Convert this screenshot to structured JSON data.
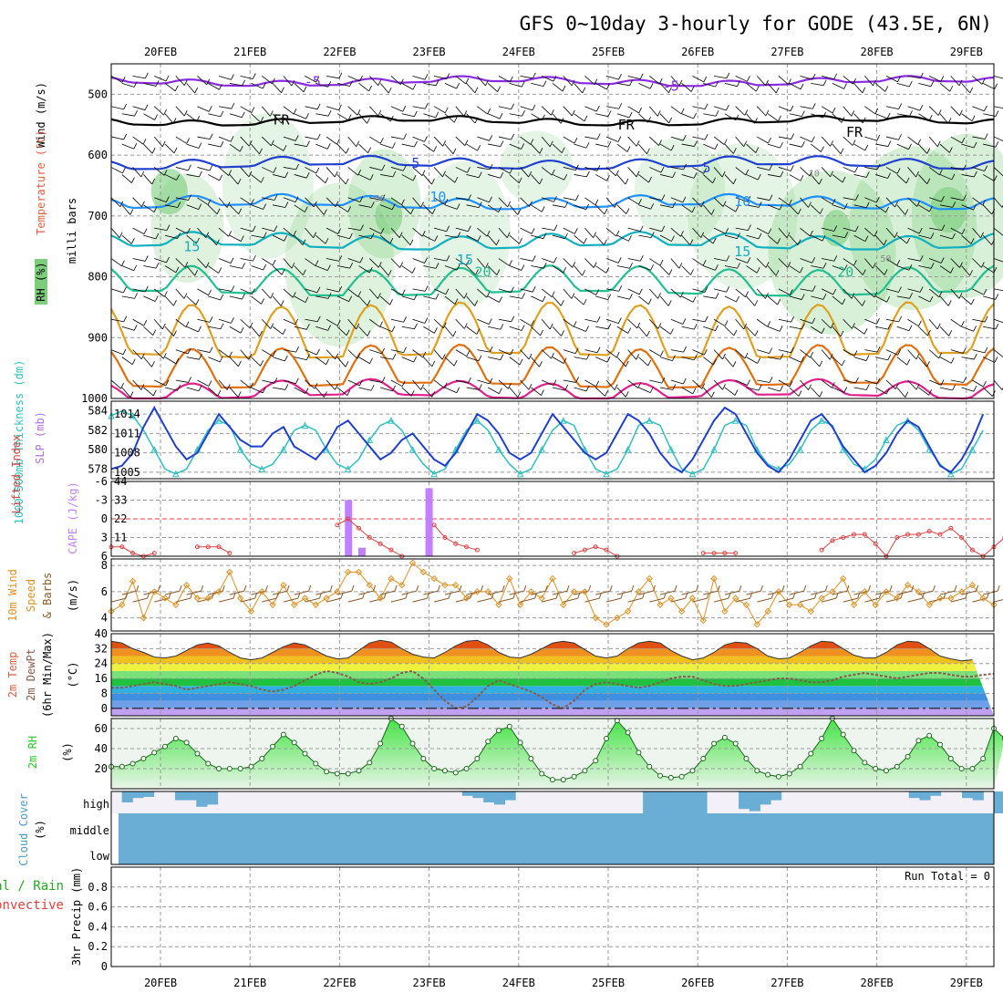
{
  "title": "GFS 0~10day 3-hourly for GODE (43.5E, 6N)",
  "colors": {
    "temp_neg5": "#8a2be2",
    "temp_fr": "#000000",
    "temp_5": "#2040d0",
    "temp_10": "#1e90ff",
    "temp_15": "#10b0c0",
    "temp_20": "#20c090",
    "temp_25": "#e0a020",
    "temp_30": "#e07010",
    "temp_35": "#e0208c",
    "rh_fill": "#7ccd7c",
    "slp": "#1f3fcf",
    "thickness": "#30c0c0",
    "cape": "#c080ff",
    "lifted_index": "#e04040",
    "wind_speed": "#e09020",
    "wind_barb": "#8b5a2b",
    "dewpoint": "#8b5a4a",
    "rh2m": "#22cc22",
    "cloud": "#6aaed6",
    "cloud_bg": "#f3f0f8",
    "freezing": "#000000"
  },
  "chart_data": [
    {
      "panel": "upper-air",
      "type": "contour",
      "x_ticks": [
        "20FEB",
        "21FEB",
        "22FEB",
        "23FEB",
        "24FEB",
        "25FEB",
        "26FEB",
        "27FEB",
        "28FEB",
        "29FEB"
      ],
      "ylabel": "milli bars",
      "y_ticks": [
        500,
        600,
        700,
        800,
        900,
        1000
      ],
      "ylim": [
        1000,
        450
      ],
      "ylabel_parts": [
        "RH (%)",
        "Temperature (°C)",
        "Wind (m/s)"
      ],
      "contour_labels": [
        "-5",
        "-5",
        "FR",
        "FR",
        "FR",
        "5",
        "5",
        "10",
        "10",
        "15",
        "15",
        "20",
        "20",
        "10",
        "10",
        "50",
        "50"
      ],
      "isotherms": [
        {
          "name": "-5",
          "mean_p": 480,
          "amp": 6
        },
        {
          "name": "FR",
          "mean_p": 545,
          "amp": 6
        },
        {
          "name": "5",
          "mean_p": 615,
          "amp": 10
        },
        {
          "name": "10",
          "mean_p": 680,
          "amp": 12
        },
        {
          "name": "15",
          "mean_p": 745,
          "amp": 15
        },
        {
          "name": "20",
          "mean_p": 815,
          "amp": 30
        },
        {
          "name": "25",
          "mean_p": 905,
          "amp": 60
        },
        {
          "name": "30",
          "mean_p": 960,
          "amp": 45
        },
        {
          "name": "35",
          "mean_p": 990,
          "amp": 18
        }
      ]
    },
    {
      "panel": "slp-thickness",
      "type": "line",
      "y_ticks_left": [
        578,
        580,
        582,
        584
      ],
      "ylim_left": [
        577,
        585
      ],
      "y_ticks_right": [
        1005,
        1008,
        1011,
        1014
      ],
      "ylim_right": [
        1004,
        1016
      ],
      "ylabel_left": "1000~500mb Thickness (dm)",
      "ylabel_right": "SLP (mb)",
      "series": [
        {
          "values": [
            1005.5,
            1006,
            1008,
            1012,
            1015,
            1012,
            1009,
            1007,
            1008,
            1011,
            1014,
            1012,
            1010,
            1009,
            1009,
            1011,
            1012,
            1009,
            1008,
            1007,
            1009,
            1012,
            1013,
            1011,
            1009,
            1007,
            1008,
            1010,
            1011,
            1009,
            1007,
            1006,
            1008,
            1011,
            1014,
            1013,
            1011,
            1008,
            1007,
            1008,
            1011,
            1014,
            1012,
            1010,
            1008,
            1007,
            1008,
            1011,
            1014,
            1013,
            1011,
            1008,
            1006,
            1005,
            1007,
            1010,
            1013,
            1015,
            1014,
            1011,
            1008,
            1006,
            1005,
            1007,
            1010,
            1013,
            1014,
            1012,
            1009,
            1007,
            1005,
            1006,
            1008,
            1011,
            1013,
            1012,
            1009,
            1006,
            1005,
            1007,
            1010,
            1014
          ]
        },
        {
          "values": [
            583.5,
            584,
            583.5,
            582,
            580,
            578,
            577.5,
            578,
            580,
            582,
            583,
            582.5,
            580,
            578.5,
            578,
            578.5,
            580,
            582,
            582.5,
            582,
            580,
            578.5,
            578,
            579,
            581,
            582.5,
            583,
            582,
            580,
            578.5,
            577.5,
            578,
            580,
            582,
            583,
            582,
            580,
            578.5,
            577.5,
            578,
            580,
            582,
            583,
            582.5,
            580,
            578,
            577.5,
            578,
            580,
            582.5,
            583,
            582.5,
            580,
            578,
            577.5,
            578,
            580,
            582.5,
            583,
            582.5,
            580,
            578.5,
            578,
            578.5,
            580,
            582,
            583,
            582.5,
            580,
            578.5,
            578,
            579,
            581,
            582.5,
            583,
            582,
            580,
            578.5,
            577.5,
            578,
            580,
            582
          ]
        }
      ]
    },
    {
      "panel": "cape-li",
      "type": "bar",
      "y_ticks_left": [
        -6,
        -3,
        0,
        3,
        6
      ],
      "ylim_left": [
        6,
        -6
      ],
      "y_ticks_right": [
        11,
        22,
        33,
        44
      ],
      "ylim_right": [
        0,
        44
      ],
      "ylabel_left": "Lifted Index",
      "ylabel_right": "CAPE (J/kg)",
      "cape_x_days": [
        2.1,
        2.25,
        3.0
      ],
      "cape_values": [
        33,
        5,
        40
      ],
      "series": [
        {
          "values": [
            4.5,
            4.5,
            5.5,
            6,
            5.5,
            null,
            null,
            null,
            4.5,
            4.5,
            4.5,
            5.5,
            null,
            null,
            null,
            null,
            null,
            null,
            null,
            null,
            null,
            1,
            0,
            1.5,
            3,
            4,
            5,
            6,
            null,
            null,
            1,
            3,
            4,
            4.5,
            5,
            null,
            null,
            null,
            null,
            null,
            null,
            null,
            null,
            5.5,
            5,
            4.5,
            5,
            6,
            null,
            null,
            null,
            null,
            null,
            null,
            null,
            5.5,
            5.5,
            5.5,
            5.5,
            null,
            null,
            null,
            null,
            null,
            null,
            null,
            5,
            3.5,
            3,
            2.5,
            2.5,
            4,
            6,
            3,
            2.5,
            2.5,
            2,
            2.5,
            1.5,
            3,
            5,
            6,
            4.5,
            3,
            2
          ]
        }
      ]
    },
    {
      "panel": "wind10m",
      "type": "line",
      "y_ticks": [
        4,
        6,
        8
      ],
      "ylim": [
        3,
        8.5
      ],
      "ylabel": "10m Wind Speed & Barbs (m/s)",
      "series": [
        {
          "values": [
            4.5,
            5,
            6.8,
            4,
            6,
            5.5,
            5,
            6.5,
            5.5,
            5.5,
            6,
            7.5,
            5.5,
            4.5,
            6,
            5,
            6.5,
            5,
            5.5,
            5,
            5.5,
            6,
            7.5,
            7.5,
            6.5,
            5.5,
            7,
            6.5,
            8.2,
            7.5,
            7,
            6.5,
            6.5,
            5.5,
            6,
            6,
            5,
            7,
            5,
            6,
            5.5,
            7,
            5,
            6,
            6,
            4,
            3.5,
            4,
            4.5,
            6,
            7,
            5,
            5.5,
            4.5,
            5.5,
            3.8,
            7,
            4.5,
            5.5,
            5,
            3.5,
            4.5,
            6,
            5,
            5,
            4.5,
            5.5,
            6,
            7,
            5,
            6,
            5,
            6,
            5.5,
            6.5,
            6,
            5,
            5.5,
            5.5,
            6,
            6.5,
            5.5,
            5
          ]
        }
      ]
    },
    {
      "panel": "temp2m",
      "type": "area",
      "y_ticks": [
        0,
        8,
        16,
        24,
        32,
        40
      ],
      "ylim": [
        -4,
        40
      ],
      "ylabel": "2m Temp 2m DewPt (6hr Min/Max) (°C)",
      "series": [
        {
          "values": [
            36,
            35,
            32,
            30,
            27.5,
            27,
            28,
            31,
            34,
            35,
            33.5,
            30,
            27,
            26,
            27,
            30,
            33,
            35,
            34,
            31,
            28,
            26.5,
            27,
            31,
            35,
            36.5,
            35.5,
            32,
            29,
            27.5,
            27,
            30,
            33.5,
            36,
            36.5,
            34,
            30,
            27.5,
            27,
            29,
            32,
            35,
            36,
            35,
            31.5,
            28,
            27,
            28,
            32,
            35,
            36,
            35,
            31,
            28,
            26,
            27,
            30,
            34,
            35.5,
            35,
            32,
            28,
            26.5,
            27,
            30,
            33.5,
            36,
            35.5,
            32,
            28.5,
            27,
            27,
            30,
            34,
            36,
            35.5,
            32,
            28,
            26.5,
            25.5,
            26
          ]
        },
        {
          "values": [
            11,
            11,
            12,
            13,
            14,
            13,
            12,
            10,
            11,
            12,
            13,
            14,
            13,
            12,
            10,
            9,
            10,
            12,
            15,
            18,
            20,
            19,
            17,
            14,
            13,
            14,
            16,
            19,
            20,
            16,
            10,
            4,
            0,
            1,
            6,
            12,
            15,
            13,
            11,
            9,
            6,
            2,
            0,
            4,
            10,
            13,
            14,
            13,
            12,
            11,
            12,
            14,
            16,
            17,
            17,
            15,
            13,
            12,
            12,
            13,
            14,
            15,
            16,
            16,
            15,
            14,
            14,
            15,
            17,
            18,
            19,
            18,
            17,
            16,
            17,
            18,
            19,
            19,
            18,
            17,
            17,
            18,
            18.5
          ]
        }
      ]
    },
    {
      "panel": "rh2m",
      "type": "area",
      "y_ticks": [
        20,
        40,
        60
      ],
      "ylim": [
        0,
        70
      ],
      "ylabel": "2m RH (%)",
      "series": [
        {
          "values": [
            22,
            22,
            25,
            30,
            36,
            42,
            50,
            46,
            35,
            25,
            20,
            20,
            20,
            22,
            30,
            42,
            54,
            46,
            35,
            25,
            17,
            15,
            15,
            18,
            26,
            45,
            70,
            62,
            45,
            30,
            20,
            18,
            16,
            20,
            30,
            47,
            58,
            62,
            46,
            30,
            15,
            9,
            9,
            12,
            18,
            28,
            50,
            68,
            56,
            36,
            22,
            13,
            11,
            12,
            18,
            30,
            45,
            51,
            45,
            30,
            18,
            14,
            12,
            15,
            22,
            35,
            50,
            70,
            54,
            38,
            26,
            20,
            18,
            22,
            32,
            48,
            53,
            44,
            30,
            20,
            20,
            30,
            60,
            50
          ]
        }
      ]
    },
    {
      "panel": "cloud",
      "type": "bar",
      "ylabel": "Cloud Cover (%)",
      "category_labels": [
        "high",
        "middle",
        "low"
      ],
      "series": [
        {
          "name": "high",
          "values": [
            0,
            50,
            30,
            25,
            0,
            0,
            40,
            40,
            70,
            60,
            0,
            0,
            0,
            0,
            0,
            0,
            0,
            0,
            0,
            0,
            0,
            0,
            0,
            0,
            0,
            0,
            0,
            0,
            0,
            0,
            0,
            0,
            0,
            20,
            30,
            50,
            60,
            40,
            0,
            0,
            0,
            0,
            0,
            0,
            0,
            0,
            0,
            0,
            0,
            0,
            100,
            100,
            100,
            100,
            100,
            100,
            0,
            0,
            0,
            80,
            90,
            60,
            40,
            0,
            0,
            0,
            0,
            0,
            0,
            0,
            0,
            0,
            0,
            0,
            0,
            30,
            40,
            20,
            0,
            0,
            30,
            40,
            0,
            100
          ]
        }
      ]
    },
    {
      "panel": "precip",
      "type": "bar",
      "y_ticks": [
        0,
        0.2,
        0.4,
        0.6,
        0.8
      ],
      "ylim": [
        0,
        1
      ],
      "ylabel_parts": [
        "3hr Precip (mm)",
        "Total / Rain",
        "Convective"
      ],
      "run_total": "Run Total = 0",
      "series": [
        {
          "values": []
        }
      ]
    }
  ]
}
